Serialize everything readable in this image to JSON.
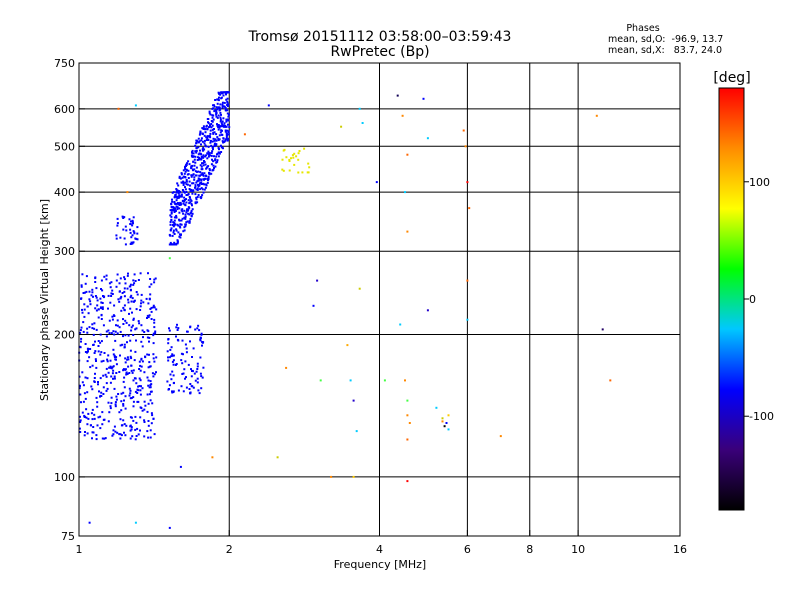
{
  "chart_data": {
    "type": "scatter",
    "title": "Tromsø 20151112 03:58:00–03:59:43",
    "subtitle": "RwPretec (Bp)",
    "xlabel": "Frequency [MHz]",
    "ylabel": "Stationary phase Virtual Height [km]",
    "x_scale": "log",
    "y_scale": "log",
    "xlim": [
      1,
      16
    ],
    "ylim": [
      75,
      750
    ],
    "x_ticks": [
      1,
      2,
      4,
      6,
      8,
      10,
      16
    ],
    "y_ticks": [
      75,
      100,
      200,
      300,
      400,
      500,
      600,
      750
    ],
    "grid": true,
    "phases": {
      "heading": "Phases",
      "o_mode": "mean, sd,O:  -96.9, 13.7",
      "x_mode": "mean, sd,X:   83.7, 24.0"
    },
    "colorbar": {
      "label": "[deg]",
      "range": [
        -180,
        180
      ],
      "ticks": [
        100,
        0,
        -100
      ],
      "tick_labels": [
        "100",
        "0",
        "-100"
      ],
      "colormap": [
        "#000000",
        "#3a007a",
        "#0000ff",
        "#00c8ff",
        "#00ff00",
        "#ffff00",
        "#ff8c00",
        "#ff0000"
      ]
    },
    "clusters": [
      {
        "mode": "O",
        "phase": -100,
        "color": "#0000ff",
        "x_range": [
          1.0,
          1.43
        ],
        "y_range": [
          120,
          270
        ],
        "n": 560
      },
      {
        "mode": "O",
        "phase": -100,
        "color": "#0000ff",
        "x_range": [
          1.5,
          1.78
        ],
        "y_range": [
          150,
          210
        ],
        "n": 110
      },
      {
        "mode": "O",
        "phase": -100,
        "color": "#0000ff",
        "x_range": [
          1.18,
          1.31
        ],
        "y_range": [
          310,
          360
        ],
        "n": 40
      },
      {
        "mode": "O",
        "phase": -100,
        "color": "#0000ff",
        "x_range": [
          1.52,
          2.0
        ],
        "y_range": [
          310,
          650
        ],
        "n": 700
      },
      {
        "mode": "X",
        "phase": 110,
        "color": "#e6e600",
        "x_range": [
          2.55,
          2.9
        ],
        "y_range": [
          440,
          510
        ],
        "n": 25
      }
    ],
    "scattered_points": [
      {
        "x": 1.05,
        "y": 80,
        "phase": -100,
        "color": "#0000ff"
      },
      {
        "x": 1.2,
        "y": 600,
        "phase": 150,
        "color": "#ff6600"
      },
      {
        "x": 1.25,
        "y": 400,
        "phase": 150,
        "color": "#ff8800"
      },
      {
        "x": 1.3,
        "y": 610,
        "phase": 40,
        "color": "#00ccff"
      },
      {
        "x": 1.3,
        "y": 80,
        "phase": 40,
        "color": "#00ccff"
      },
      {
        "x": 1.52,
        "y": 290,
        "phase": 60,
        "color": "#44ff44"
      },
      {
        "x": 1.52,
        "y": 78,
        "phase": -100,
        "color": "#0000ff"
      },
      {
        "x": 1.6,
        "y": 105,
        "phase": -100,
        "color": "#0000ff"
      },
      {
        "x": 1.85,
        "y": 110,
        "phase": 150,
        "color": "#ff8800"
      },
      {
        "x": 2.5,
        "y": 110,
        "phase": 110,
        "color": "#cccc00"
      },
      {
        "x": 2.15,
        "y": 530,
        "phase": 150,
        "color": "#ff6600"
      },
      {
        "x": 2.4,
        "y": 610,
        "phase": -100,
        "color": "#0000ff"
      },
      {
        "x": 2.6,
        "y": 170,
        "phase": 150,
        "color": "#ff8800"
      },
      {
        "x": 2.95,
        "y": 230,
        "phase": -100,
        "color": "#0000ff"
      },
      {
        "x": 3.0,
        "y": 260,
        "phase": -120,
        "color": "#2200cc"
      },
      {
        "x": 3.05,
        "y": 160,
        "phase": 60,
        "color": "#44ff44"
      },
      {
        "x": 3.2,
        "y": 100,
        "phase": 150,
        "color": "#ff8800"
      },
      {
        "x": 3.35,
        "y": 550,
        "phase": 110,
        "color": "#cccc00"
      },
      {
        "x": 3.45,
        "y": 190,
        "phase": 130,
        "color": "#ffaa00"
      },
      {
        "x": 3.5,
        "y": 160,
        "phase": 40,
        "color": "#00ccff"
      },
      {
        "x": 3.55,
        "y": 145,
        "phase": -120,
        "color": "#2200cc"
      },
      {
        "x": 3.6,
        "y": 125,
        "phase": 40,
        "color": "#00ccff"
      },
      {
        "x": 3.65,
        "y": 600,
        "phase": 40,
        "color": "#00ccff"
      },
      {
        "x": 3.7,
        "y": 560,
        "phase": 40,
        "color": "#00ccff"
      },
      {
        "x": 3.65,
        "y": 250,
        "phase": 110,
        "color": "#cccc00"
      },
      {
        "x": 3.55,
        "y": 100,
        "phase": 130,
        "color": "#ffcc00"
      },
      {
        "x": 3.95,
        "y": 420,
        "phase": -110,
        "color": "#0000ff"
      },
      {
        "x": 4.1,
        "y": 160,
        "phase": 60,
        "color": "#44ff44"
      },
      {
        "x": 4.35,
        "y": 640,
        "phase": -140,
        "color": "#110055"
      },
      {
        "x": 4.45,
        "y": 580,
        "phase": 130,
        "color": "#ff8800"
      },
      {
        "x": 4.55,
        "y": 480,
        "phase": 150,
        "color": "#ff6600"
      },
      {
        "x": 4.5,
        "y": 400,
        "phase": 40,
        "color": "#00ccff"
      },
      {
        "x": 4.55,
        "y": 330,
        "phase": 150,
        "color": "#ff8800"
      },
      {
        "x": 4.4,
        "y": 210,
        "phase": 40,
        "color": "#00ccff"
      },
      {
        "x": 4.5,
        "y": 160,
        "phase": 150,
        "color": "#ff8800"
      },
      {
        "x": 4.55,
        "y": 145,
        "phase": 60,
        "color": "#44ff44"
      },
      {
        "x": 4.55,
        "y": 135,
        "phase": 150,
        "color": "#ff8800"
      },
      {
        "x": 4.6,
        "y": 130,
        "phase": 150,
        "color": "#ff8800"
      },
      {
        "x": 4.55,
        "y": 120,
        "phase": 150,
        "color": "#ff6600"
      },
      {
        "x": 4.55,
        "y": 98,
        "phase": 170,
        "color": "#ff0000"
      },
      {
        "x": 4.9,
        "y": 630,
        "phase": -100,
        "color": "#0000ff"
      },
      {
        "x": 5.0,
        "y": 520,
        "phase": 40,
        "color": "#00ccff"
      },
      {
        "x": 5.0,
        "y": 225,
        "phase": -120,
        "color": "#2200cc"
      },
      {
        "x": 5.2,
        "y": 140,
        "phase": 40,
        "color": "#00ccff"
      },
      {
        "x": 5.35,
        "y": 133,
        "phase": 110,
        "color": "#cccc00"
      },
      {
        "x": 5.35,
        "y": 131,
        "phase": 150,
        "color": "#ff8800"
      },
      {
        "x": 5.45,
        "y": 130,
        "phase": -110,
        "color": "#0000ff"
      },
      {
        "x": 5.5,
        "y": 135,
        "phase": 130,
        "color": "#ffcc00"
      },
      {
        "x": 5.4,
        "y": 128,
        "phase": -150,
        "color": "#000000"
      },
      {
        "x": 5.5,
        "y": 126,
        "phase": 40,
        "color": "#00ccff"
      },
      {
        "x": 5.9,
        "y": 540,
        "phase": 150,
        "color": "#ff6600"
      },
      {
        "x": 5.95,
        "y": 500,
        "phase": 150,
        "color": "#ff8800"
      },
      {
        "x": 6.0,
        "y": 420,
        "phase": 170,
        "color": "#ff0000"
      },
      {
        "x": 6.05,
        "y": 370,
        "phase": 150,
        "color": "#ff6600"
      },
      {
        "x": 6.0,
        "y": 260,
        "phase": 150,
        "color": "#ff6600"
      },
      {
        "x": 6.0,
        "y": 215,
        "phase": 40,
        "color": "#00ccff"
      },
      {
        "x": 7.0,
        "y": 122,
        "phase": 150,
        "color": "#ff8800"
      },
      {
        "x": 10.9,
        "y": 580,
        "phase": 150,
        "color": "#ff8800"
      },
      {
        "x": 11.2,
        "y": 205,
        "phase": -130,
        "color": "#220066"
      },
      {
        "x": 11.6,
        "y": 160,
        "phase": 150,
        "color": "#ff6600"
      }
    ]
  }
}
